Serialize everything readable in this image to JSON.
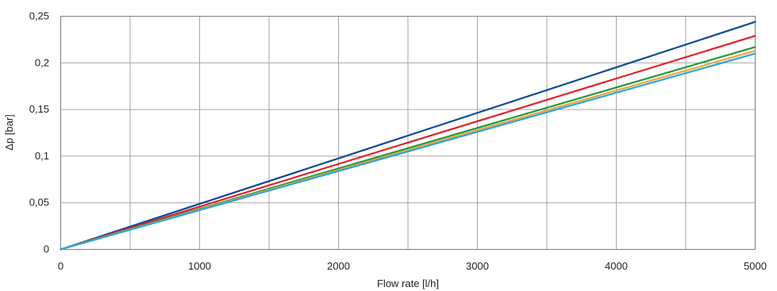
{
  "chart_data": {
    "type": "line",
    "title": "",
    "xlabel": "Flow rate [l/h]",
    "ylabel": "Δp [bar]",
    "xlim": [
      0,
      5000
    ],
    "ylim": [
      0,
      0.25
    ],
    "x_ticks": [
      0,
      1000,
      2000,
      3000,
      4000,
      5000
    ],
    "y_ticks": [
      0,
      0.05,
      0.1,
      0.15,
      0.2,
      0.25
    ],
    "x_tick_labels": [
      "0",
      "1000",
      "2000",
      "3000",
      "4000",
      "5000"
    ],
    "y_tick_labels": [
      "0",
      "0,05",
      "0,1",
      "0,15",
      "0,2",
      "0,25"
    ],
    "x_grid": [
      0,
      500,
      1000,
      1500,
      2000,
      2500,
      3000,
      3500,
      4000,
      4500,
      5000
    ],
    "grid": true,
    "legend": "none",
    "series": [
      {
        "color": "#0b4a96",
        "x": [
          0,
          5000
        ],
        "y": [
          0,
          0.244
        ]
      },
      {
        "color": "#e0232c",
        "x": [
          0,
          5000
        ],
        "y": [
          0,
          0.229
        ]
      },
      {
        "color": "#1f9a3a",
        "x": [
          0,
          5000
        ],
        "y": [
          0,
          0.217
        ]
      },
      {
        "color": "#f2a03d",
        "x": [
          0,
          5000
        ],
        "y": [
          0,
          0.213
        ]
      },
      {
        "color": "#2aa6dc",
        "x": [
          0,
          5000
        ],
        "y": [
          0,
          0.21
        ]
      }
    ]
  }
}
